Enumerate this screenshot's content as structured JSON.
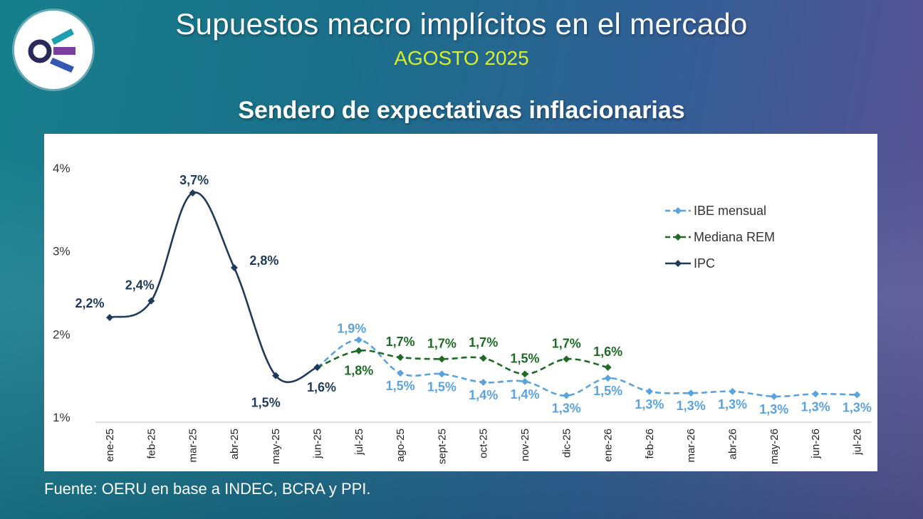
{
  "header": {
    "title": "Supuestos macro implícitos en el mercado",
    "subtitle": "AGOSTO 2025",
    "logo_icon": "oeru-logo-icon"
  },
  "chart_title": "Sendero de expectativas inflacionarias",
  "source": "Fuente: OERU en base a INDEC, BCRA y PPI.",
  "colors": {
    "ipc": "#1f3a5a",
    "rem": "#1e6b25",
    "ibe": "#5ba3dc",
    "accent": "#d7ef2a"
  },
  "chart_data": {
    "type": "line",
    "categories": [
      "ene-25",
      "feb-25",
      "mar-25",
      "abr-25",
      "may-25",
      "jun-25",
      "jul-25",
      "ago-25",
      "sept-25",
      "oct-25",
      "nov-25",
      "dic-25",
      "ene-26",
      "feb-26",
      "mar-26",
      "abr-26",
      "may-26",
      "jun-26",
      "jul-26"
    ],
    "yticks": [
      {
        "value": 1,
        "label": "1%"
      },
      {
        "value": 2,
        "label": "2%"
      },
      {
        "value": 3,
        "label": "3%"
      },
      {
        "value": 4,
        "label": "4%"
      }
    ],
    "ylim": [
      1,
      4
    ],
    "legend_position": "right",
    "series": [
      {
        "name": "IBE mensual",
        "key": "ibe",
        "style": "dashed",
        "values": [
          null,
          null,
          null,
          null,
          null,
          1.6,
          1.93,
          1.53,
          1.52,
          1.42,
          1.43,
          1.26,
          1.47,
          1.31,
          1.29,
          1.31,
          1.25,
          1.28,
          1.27
        ],
        "labels": [
          null,
          null,
          null,
          null,
          null,
          null,
          "1,9%",
          "1,5%",
          "1,5%",
          "1,4%",
          "1,4%",
          "1,3%",
          "1,5%",
          "1,3%",
          "1,3%",
          "1,3%",
          "1,3%",
          "1,3%",
          "1,3%"
        ]
      },
      {
        "name": "Mediana REM",
        "key": "rem",
        "style": "dashed",
        "values": [
          null,
          null,
          null,
          null,
          null,
          1.6,
          1.8,
          1.72,
          1.7,
          1.71,
          1.52,
          1.7,
          1.6,
          null,
          null,
          null,
          null,
          null,
          null
        ],
        "labels": [
          null,
          null,
          null,
          null,
          null,
          null,
          "1,8%",
          "1,7%",
          "1,7%",
          "1,7%",
          "1,5%",
          "1,7%",
          "1,6%",
          null,
          null,
          null,
          null,
          null,
          null
        ]
      },
      {
        "name": "IPC",
        "key": "ipc",
        "style": "solid",
        "values": [
          2.2,
          2.4,
          3.7,
          2.8,
          1.5,
          1.6,
          null,
          null,
          null,
          null,
          null,
          null,
          null,
          null,
          null,
          null,
          null,
          null,
          null
        ],
        "labels": [
          "2,2%",
          "2,4%",
          "3,7%",
          "2,8%",
          "1,5%",
          "1,6%",
          null,
          null,
          null,
          null,
          null,
          null,
          null,
          null,
          null,
          null,
          null,
          null,
          null
        ]
      }
    ]
  }
}
